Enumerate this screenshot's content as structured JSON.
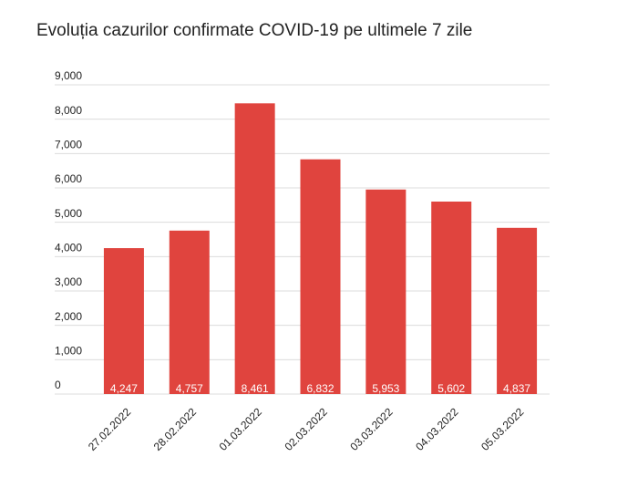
{
  "chart_data": {
    "type": "bar",
    "title": "Evoluția cazurilor confirmate COVID-19 pe ultimele 7 zile",
    "categories": [
      "27.02.2022",
      "28.02.2022",
      "01.03.2022",
      "02.03.2022",
      "03.03.2022",
      "04.03.2022",
      "05.03.2022"
    ],
    "values": [
      4247,
      4757,
      8461,
      6832,
      5953,
      5602,
      4837
    ],
    "value_labels": [
      "4,247",
      "4,757",
      "8,461",
      "6,832",
      "5,953",
      "5,602",
      "4,837"
    ],
    "color": "#e0443e",
    "ylim": [
      0,
      9000
    ],
    "yticks": [
      0,
      {
        "value": 1000,
        "label": "1,000"
      },
      {
        "value": 2000,
        "label": "2,000"
      },
      {
        "value": 3000,
        "label": "3,000"
      },
      {
        "value": 4000,
        "label": "4,000"
      },
      {
        "value": 5000,
        "label": "5,000"
      },
      {
        "value": 6000,
        "label": "6,000"
      },
      {
        "value": 7000,
        "label": "7,000"
      },
      {
        "value": 8000,
        "label": "8,000"
      },
      {
        "value": 9000,
        "label": "9,000"
      }
    ],
    "grid": true
  }
}
